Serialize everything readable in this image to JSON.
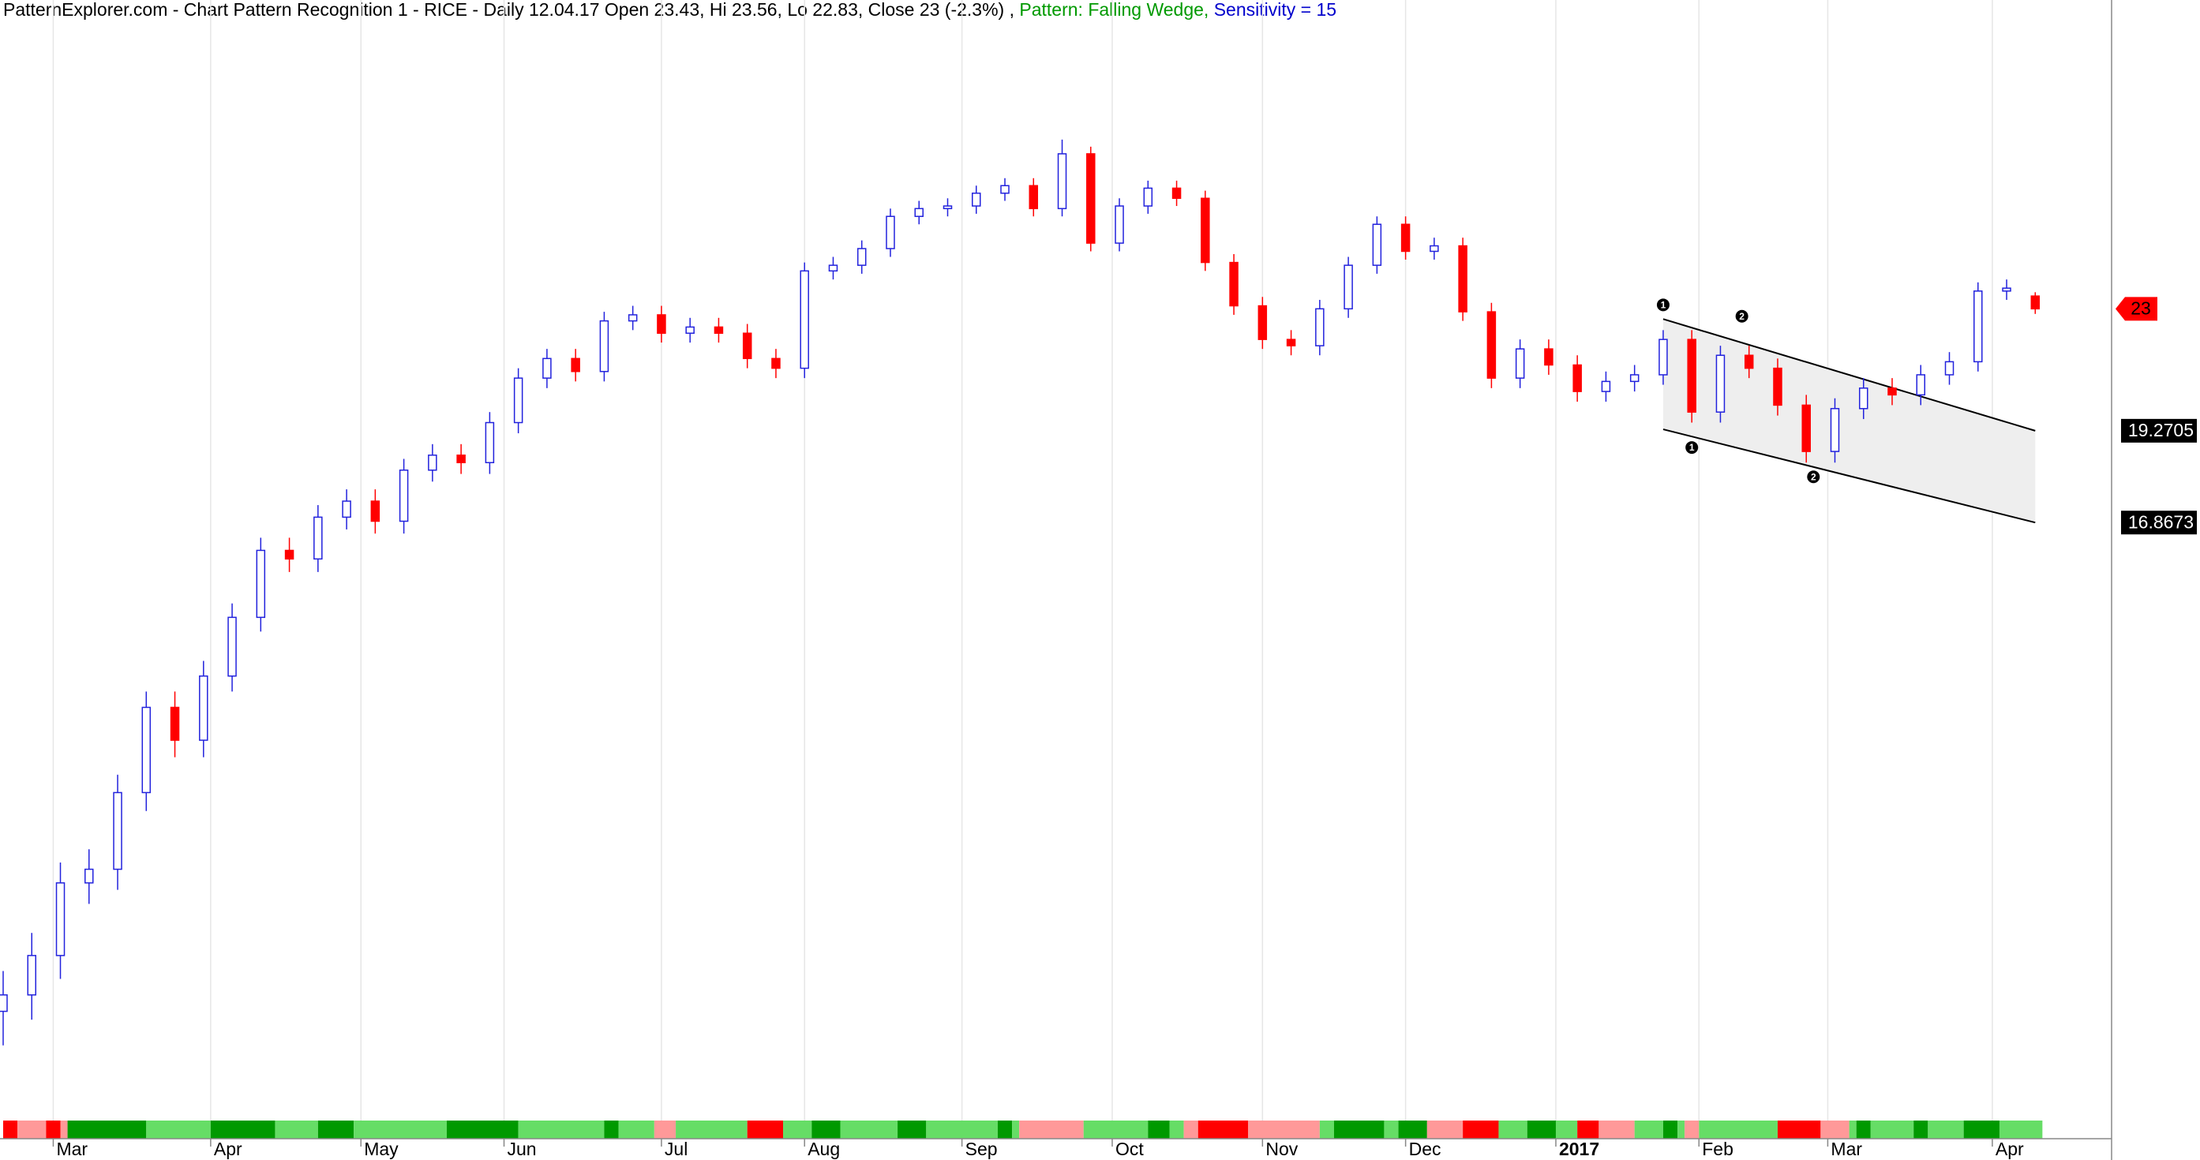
{
  "chart_data": {
    "type": "candlestick",
    "title_parts": [
      {
        "text": "PatternExplorer.com - Chart Pattern Recognition 1  - RICE - Daily 12.04.17 Open 23.43, Hi 23.56, Lo 22.83, Close 23 (-2.3%) , ",
        "color": "#000000"
      },
      {
        "text": "Pattern: Falling Wedge,",
        "color": "#009900"
      },
      {
        "text": " Sensitivity = 15",
        "color": "#0000cc"
      }
    ],
    "log_y": true,
    "ylim": [
      7.1,
      36
    ],
    "xlim": [
      0,
      295
    ],
    "xticks": [
      {
        "value": 7,
        "label": "Mar"
      },
      {
        "value": 29,
        "label": "Apr"
      },
      {
        "value": 50,
        "label": "May"
      },
      {
        "value": 70,
        "label": "Jun"
      },
      {
        "value": 92,
        "label": "Jul"
      },
      {
        "value": 112,
        "label": "Aug"
      },
      {
        "value": 134,
        "label": "Sep"
      },
      {
        "value": 155,
        "label": "Oct"
      },
      {
        "value": 176,
        "label": "Nov"
      },
      {
        "value": 196,
        "label": "Dec"
      },
      {
        "value": 217,
        "label": "2017",
        "bold": true
      },
      {
        "value": 237,
        "label": "Feb"
      },
      {
        "value": 255,
        "label": "Mar"
      },
      {
        "value": 278,
        "label": "Apr"
      }
    ],
    "grid": true,
    "up_color": "#2222dd",
    "down_color": "#ff0000",
    "x": [
      0,
      4,
      8,
      12,
      16,
      20,
      24,
      28,
      32,
      36,
      40,
      44,
      48,
      52,
      56,
      60,
      64,
      68,
      72,
      76,
      80,
      84,
      88,
      92,
      96,
      100,
      104,
      108,
      112,
      116,
      120,
      124,
      128,
      132,
      136,
      140,
      144,
      148,
      152,
      156,
      160,
      164,
      168,
      172,
      176,
      180,
      184,
      188,
      192,
      196,
      200,
      204,
      208,
      212,
      216,
      220,
      224,
      228,
      232,
      236,
      240,
      244,
      248,
      252,
      256,
      260,
      264,
      268,
      272,
      276,
      280,
      284
    ],
    "open": [
      8.3,
      8.5,
      9.0,
      10.0,
      10.2,
      11.4,
      12.9,
      12.3,
      13.5,
      14.7,
      16.2,
      16.0,
      17.0,
      17.4,
      16.9,
      18.2,
      18.6,
      18.4,
      19.5,
      20.8,
      21.4,
      21.0,
      22.6,
      22.8,
      22.2,
      22.4,
      22.2,
      21.4,
      21.1,
      24.3,
      24.5,
      25.1,
      26.3,
      26.6,
      26.7,
      27.2,
      27.5,
      26.6,
      28.8,
      25.3,
      26.7,
      27.4,
      27.0,
      24.6,
      23.1,
      22.0,
      21.8,
      23.0,
      24.5,
      26.0,
      25.0,
      25.2,
      22.9,
      20.8,
      21.7,
      21.2,
      20.4,
      20.7,
      20.9,
      22.0,
      19.8,
      21.5,
      21.1,
      20.0,
      18.7,
      19.9,
      20.5,
      20.3,
      20.9,
      21.3,
      23.6,
      23.43
    ],
    "high": [
      8.8,
      9.3,
      10.3,
      10.5,
      11.7,
      13.2,
      13.2,
      13.8,
      15.0,
      16.5,
      16.5,
      17.3,
      17.7,
      17.7,
      18.5,
      18.9,
      18.9,
      19.8,
      21.1,
      21.7,
      21.7,
      22.9,
      23.1,
      23.1,
      22.7,
      22.7,
      22.5,
      21.7,
      24.6,
      24.8,
      25.4,
      26.6,
      26.9,
      27.0,
      27.5,
      27.8,
      27.8,
      29.4,
      29.1,
      27.0,
      27.7,
      27.7,
      27.3,
      24.9,
      23.4,
      22.3,
      23.3,
      24.8,
      26.3,
      26.3,
      25.5,
      25.5,
      23.2,
      22.0,
      22.0,
      21.5,
      21.0,
      21.2,
      22.3,
      22.3,
      21.8,
      21.8,
      21.4,
      20.3,
      20.2,
      20.8,
      20.8,
      21.2,
      21.6,
      23.9,
      24.0,
      23.56
    ],
    "low": [
      7.9,
      8.2,
      8.7,
      9.7,
      9.9,
      11.1,
      12.0,
      12.0,
      13.2,
      14.4,
      15.7,
      15.7,
      16.7,
      16.6,
      16.6,
      17.9,
      18.1,
      18.1,
      19.2,
      20.5,
      20.7,
      20.7,
      22.3,
      21.9,
      21.9,
      21.9,
      21.1,
      20.8,
      20.8,
      24.0,
      24.2,
      24.8,
      26.0,
      26.3,
      26.4,
      26.9,
      26.3,
      26.3,
      25.0,
      25.0,
      26.4,
      26.7,
      24.3,
      22.8,
      21.7,
      21.5,
      21.5,
      22.7,
      24.2,
      24.7,
      24.7,
      22.6,
      20.5,
      20.5,
      20.9,
      20.1,
      20.1,
      20.4,
      20.6,
      19.5,
      19.5,
      20.8,
      19.7,
      18.4,
      18.4,
      19.6,
      20.0,
      20.0,
      20.6,
      21.0,
      23.3,
      22.83
    ],
    "close": [
      8.5,
      9.0,
      10.0,
      10.2,
      11.4,
      12.9,
      12.3,
      13.5,
      14.7,
      16.2,
      16.0,
      17.0,
      17.4,
      16.9,
      18.2,
      18.6,
      18.4,
      19.5,
      20.8,
      21.4,
      21.0,
      22.6,
      22.8,
      22.2,
      22.4,
      22.2,
      21.4,
      21.1,
      24.3,
      24.5,
      25.1,
      26.3,
      26.6,
      26.7,
      27.2,
      27.5,
      26.6,
      28.8,
      25.3,
      26.7,
      27.4,
      27.0,
      24.6,
      23.1,
      22.0,
      21.8,
      23.0,
      24.5,
      26.0,
      25.0,
      25.2,
      22.9,
      20.8,
      21.7,
      21.2,
      20.4,
      20.7,
      20.9,
      22.0,
      19.8,
      21.5,
      21.1,
      20.0,
      18.7,
      19.9,
      20.5,
      20.3,
      20.9,
      21.3,
      23.6,
      23.7,
      23.0
    ],
    "last_price_color": "#ff0000",
    "wedge": {
      "color": "#000000",
      "fill": "#eeeeee",
      "upper": {
        "x": [
          232,
          284
        ],
        "y": [
          22.66,
          19.2705
        ]
      },
      "lower": {
        "x": [
          232,
          284
        ],
        "y": [
          19.31,
          16.8673
        ]
      }
    },
    "pivots": [
      {
        "label": "1",
        "x": 232,
        "y": 22.66,
        "side": "above"
      },
      {
        "label": "2",
        "x": 243,
        "y": 22.29,
        "side": "above"
      },
      {
        "label": "1",
        "x": 236,
        "y": 19.2,
        "side": "below"
      },
      {
        "label": "2",
        "x": 253,
        "y": 18.4,
        "side": "below"
      }
    ],
    "condition_bar": {
      "colors": {
        "r": "#ff0000",
        "p": "#ff9999",
        "d": "#009900",
        "l": "#66dd66"
      },
      "runs": [
        [
          0,
          2,
          "r"
        ],
        [
          2,
          6,
          "p"
        ],
        [
          6,
          8,
          "r"
        ],
        [
          8,
          9,
          "p"
        ],
        [
          9,
          20,
          "d"
        ],
        [
          20,
          29,
          "l"
        ],
        [
          29,
          38,
          "d"
        ],
        [
          38,
          44,
          "l"
        ],
        [
          44,
          49,
          "d"
        ],
        [
          49,
          62,
          "l"
        ],
        [
          62,
          72,
          "d"
        ],
        [
          72,
          84,
          "l"
        ],
        [
          84,
          86,
          "d"
        ],
        [
          86,
          91,
          "l"
        ],
        [
          91,
          94,
          "p"
        ],
        [
          94,
          104,
          "l"
        ],
        [
          104,
          109,
          "r"
        ],
        [
          109,
          113,
          "l"
        ],
        [
          113,
          117,
          "d"
        ],
        [
          117,
          125,
          "l"
        ],
        [
          125,
          129,
          "d"
        ],
        [
          129,
          139,
          "l"
        ],
        [
          139,
          141,
          "d"
        ],
        [
          141,
          142,
          "l"
        ],
        [
          142,
          151,
          "p"
        ],
        [
          151,
          160,
          "l"
        ],
        [
          160,
          163,
          "d"
        ],
        [
          163,
          165,
          "l"
        ],
        [
          165,
          167,
          "p"
        ],
        [
          167,
          174,
          "r"
        ],
        [
          174,
          184,
          "p"
        ],
        [
          184,
          186,
          "l"
        ],
        [
          186,
          193,
          "d"
        ],
        [
          193,
          195,
          "l"
        ],
        [
          195,
          199,
          "d"
        ],
        [
          199,
          204,
          "p"
        ],
        [
          204,
          209,
          "r"
        ],
        [
          209,
          213,
          "l"
        ],
        [
          213,
          217,
          "d"
        ],
        [
          217,
          220,
          "l"
        ],
        [
          220,
          223,
          "r"
        ],
        [
          223,
          228,
          "p"
        ],
        [
          228,
          232,
          "l"
        ],
        [
          232,
          234,
          "d"
        ],
        [
          234,
          235,
          "l"
        ],
        [
          235,
          237,
          "p"
        ],
        [
          237,
          248,
          "l"
        ],
        [
          248,
          254,
          "r"
        ],
        [
          254,
          258,
          "p"
        ],
        [
          258,
          259,
          "l"
        ],
        [
          259,
          261,
          "d"
        ],
        [
          261,
          267,
          "l"
        ],
        [
          267,
          269,
          "d"
        ],
        [
          269,
          274,
          "l"
        ],
        [
          274,
          279,
          "d"
        ],
        [
          279,
          285,
          "l"
        ]
      ]
    }
  }
}
